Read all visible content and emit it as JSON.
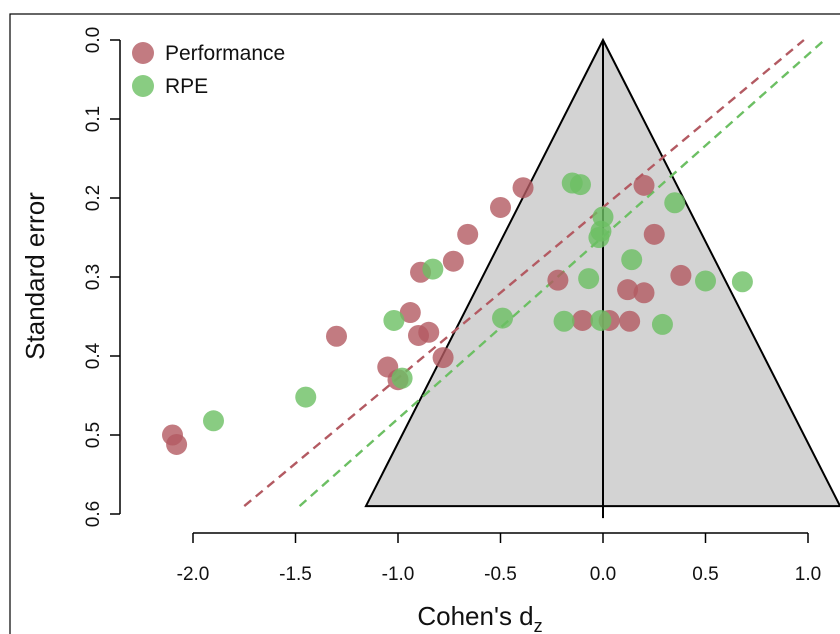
{
  "chart_data": {
    "type": "scatter",
    "xlabel": "Cohen's d",
    "xlabel_subscript": "z",
    "ylabel": "Standard error",
    "xlim": [
      -2.2,
      1.2
    ],
    "ylim": [
      0,
      0.6
    ],
    "y_reversed": true,
    "x_ticks": [
      "-2.0",
      "-1.5",
      "-1.0",
      "-0.5",
      "0.0",
      "0.5",
      "1.0"
    ],
    "y_ticks": [
      "0.0",
      "0.1",
      "0.2",
      "0.3",
      "0.4",
      "0.5",
      "0.6"
    ],
    "legend_position": "top-left",
    "funnel": {
      "center": 0,
      "max_se": 0.59,
      "fill": "#d3d3d3"
    },
    "series": [
      {
        "name": "Performance",
        "color": "#b35a62",
        "points": [
          [
            -2.1,
            0.5
          ],
          [
            -2.08,
            0.512
          ],
          [
            -1.3,
            0.375
          ],
          [
            -1.05,
            0.414
          ],
          [
            -1.0,
            0.43
          ],
          [
            -0.94,
            0.345
          ],
          [
            -0.9,
            0.374
          ],
          [
            -0.89,
            0.294
          ],
          [
            -0.85,
            0.37
          ],
          [
            -0.78,
            0.402
          ],
          [
            -0.73,
            0.28
          ],
          [
            -0.66,
            0.246
          ],
          [
            -0.5,
            0.212
          ],
          [
            -0.39,
            0.187
          ],
          [
            -0.22,
            0.304
          ],
          [
            -0.1,
            0.355
          ],
          [
            0.03,
            0.355
          ],
          [
            0.12,
            0.316
          ],
          [
            0.13,
            0.356
          ],
          [
            0.2,
            0.184
          ],
          [
            0.2,
            0.32
          ],
          [
            0.25,
            0.246
          ],
          [
            0.38,
            0.298
          ]
        ],
        "regression": {
          "x1": -1.75,
          "y1": 0.59,
          "x2": 0.98,
          "y2": 0.0
        }
      },
      {
        "name": "RPE",
        "color": "#6cbf63",
        "points": [
          [
            -1.9,
            0.482
          ],
          [
            -1.45,
            0.452
          ],
          [
            -1.02,
            0.355
          ],
          [
            -0.98,
            0.428
          ],
          [
            -0.83,
            0.29
          ],
          [
            -0.49,
            0.352
          ],
          [
            -0.19,
            0.356
          ],
          [
            -0.15,
            0.181
          ],
          [
            -0.11,
            0.183
          ],
          [
            -0.07,
            0.302
          ],
          [
            -0.02,
            0.25
          ],
          [
            -0.01,
            0.242
          ],
          [
            -0.01,
            0.355
          ],
          [
            0.0,
            0.224
          ],
          [
            0.14,
            0.278
          ],
          [
            0.29,
            0.36
          ],
          [
            0.35,
            0.206
          ],
          [
            0.5,
            0.305
          ],
          [
            0.68,
            0.306
          ]
        ],
        "regression": {
          "x1": -1.48,
          "y1": 0.59,
          "x2": 1.08,
          "y2": 0.0
        }
      }
    ]
  }
}
